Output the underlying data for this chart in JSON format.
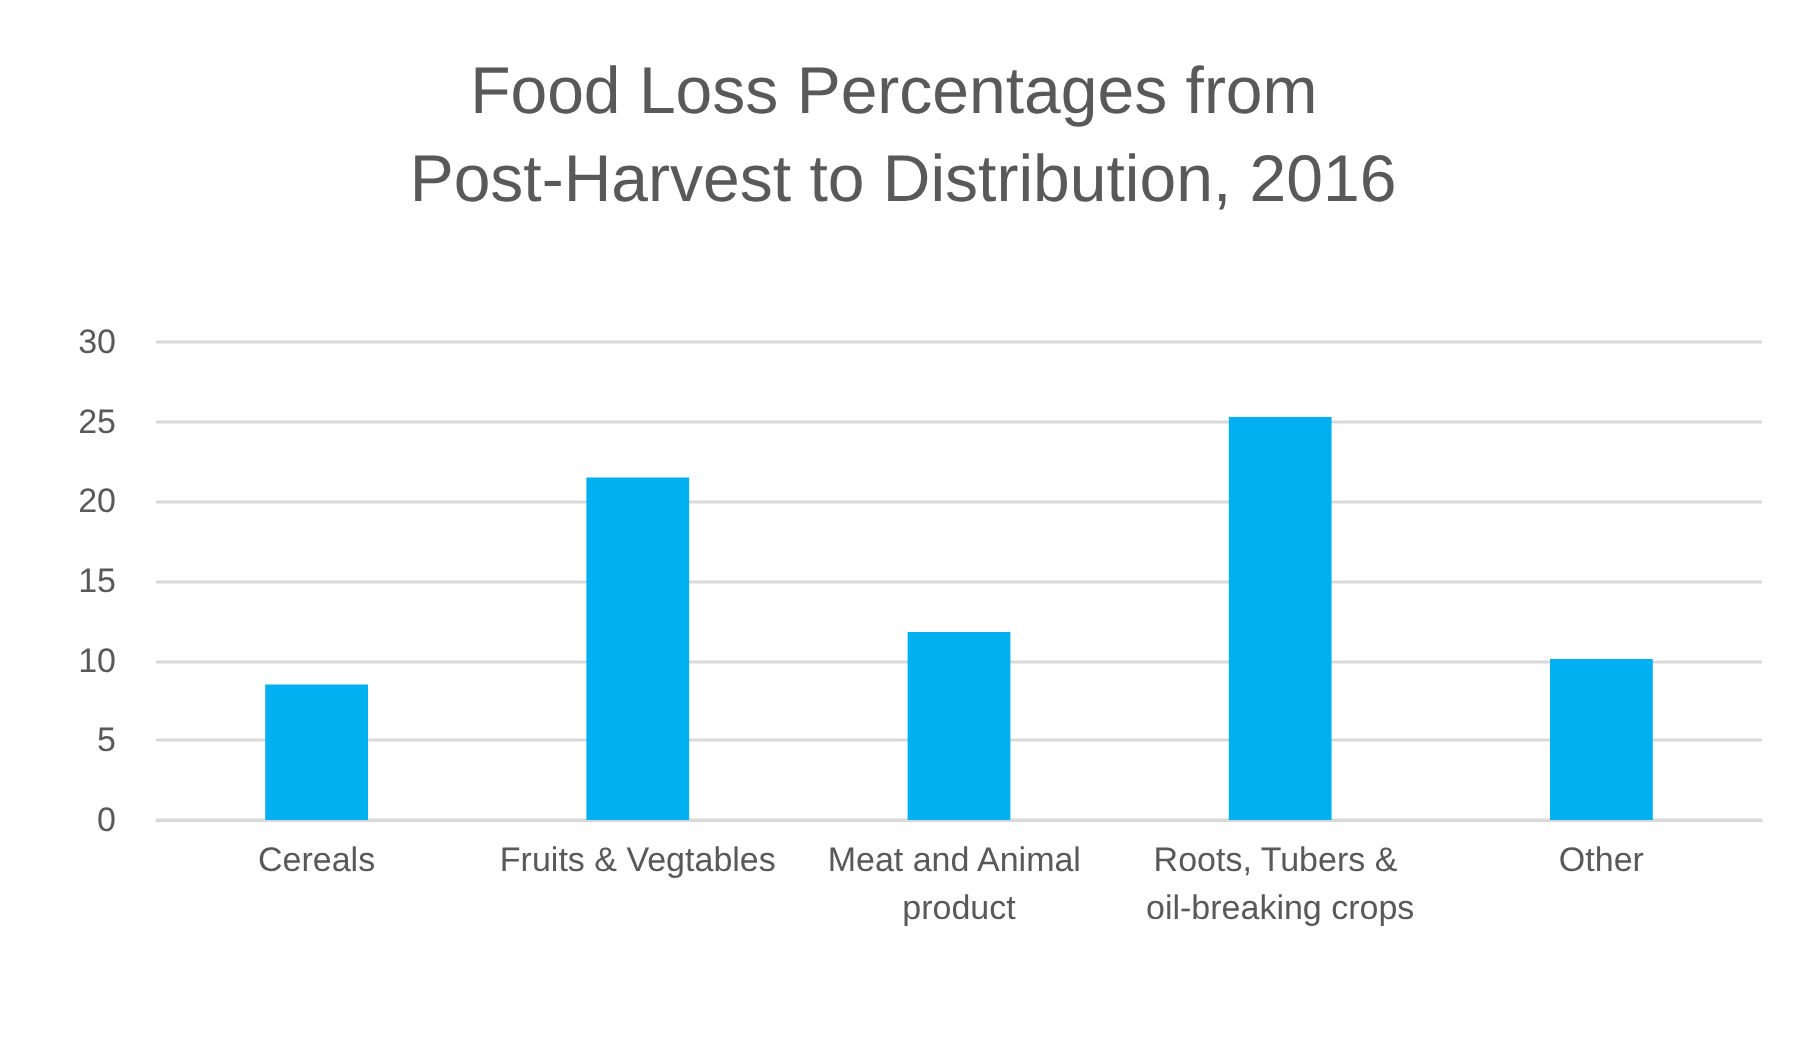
{
  "chart_data": {
    "type": "bar",
    "title": "Food Loss Percentages from Post-Harvest to Distribution, 2016",
    "categories": [
      "Cereals",
      "Fruits & Vegtables",
      "Meat and Animal product",
      "Roots, Tubers & oil-breaking crops",
      "Other"
    ],
    "values": [
      8.5,
      21.5,
      11.8,
      25.3,
      10.1
    ],
    "color": "#00b0f0",
    "ylim": [
      0,
      30
    ],
    "yticks": [
      0,
      5,
      10,
      15,
      20,
      25,
      30
    ],
    "grid": "y"
  }
}
